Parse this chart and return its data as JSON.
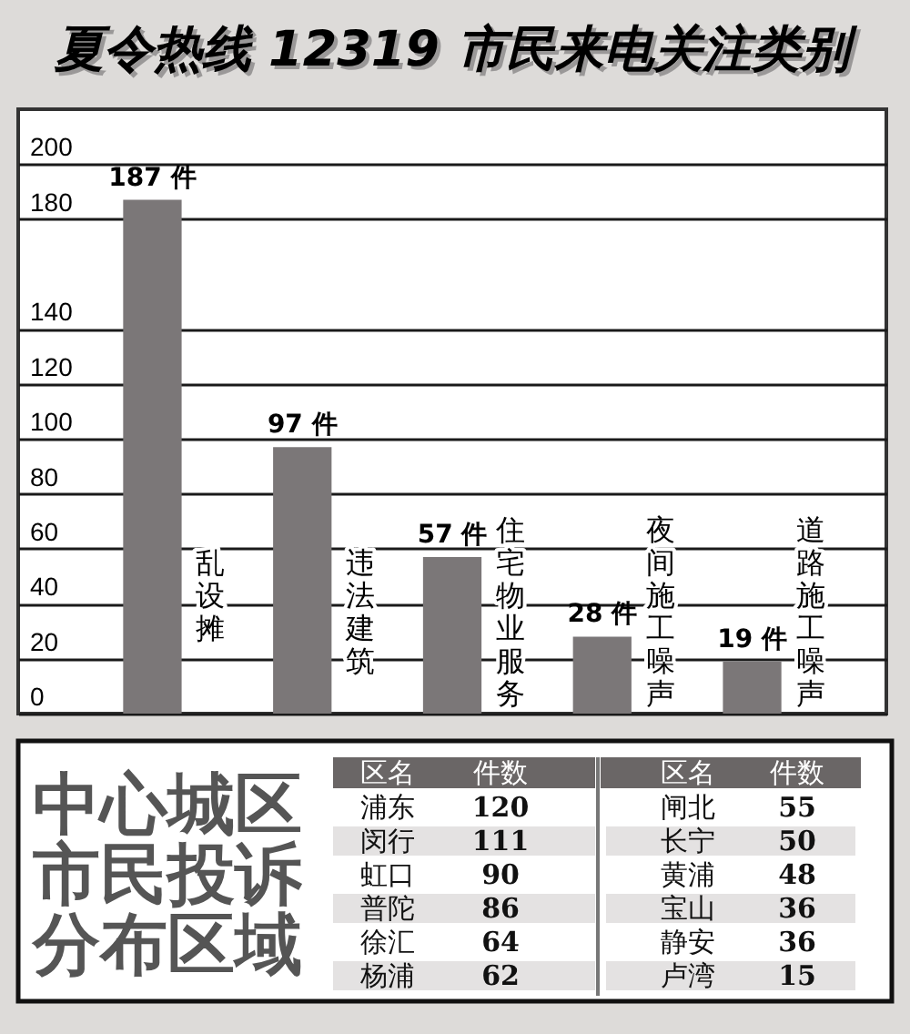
{
  "chart_data": [
    {
      "type": "bar",
      "title": "夏令热线 12319 市民来电关注类别",
      "categories": [
        "乱设摊",
        "违法建筑",
        "住宅物业服务",
        "夜间施工噪声",
        "道路施工噪声"
      ],
      "values": [
        187,
        97,
        57,
        28,
        19
      ],
      "value_labels": [
        "187 件",
        "97 件",
        "57 件",
        "28 件",
        "19 件"
      ],
      "color": "#7b7778",
      "ylim": [
        0,
        220
      ],
      "yticks": [
        0,
        20,
        40,
        60,
        80,
        100,
        120,
        140,
        180,
        200
      ],
      "grid": "y"
    },
    {
      "type": "other",
      "title": "中心城区市民投诉分布区域",
      "categories": [
        "浦东",
        "闵行",
        "虹口",
        "普陀",
        "徐汇",
        "杨浦",
        "闸北",
        "长宁",
        "黄浦",
        "宝山",
        "静安",
        "卢湾"
      ],
      "values": [
        120,
        111,
        90,
        86,
        64,
        62,
        55,
        50,
        48,
        36,
        36,
        15
      ],
      "data_labels": true,
      "annotations": [
        "区名",
        "件数",
        "区名",
        "件数"
      ]
    }
  ]
}
